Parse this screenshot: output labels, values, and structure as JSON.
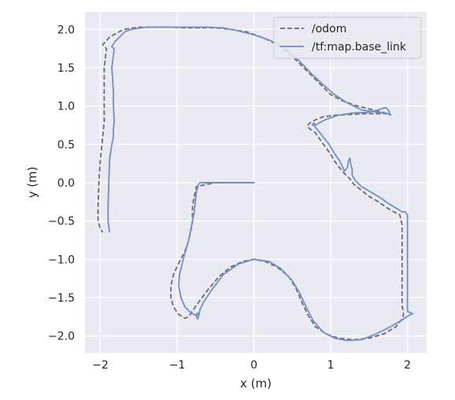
{
  "chart_data": {
    "type": "line",
    "title": "",
    "xlabel": "x (m)",
    "ylabel": "y (m)",
    "xlim": [
      -2.2,
      2.25
    ],
    "ylim": [
      -2.22,
      2.23
    ],
    "xticks": [
      -2,
      -1,
      0,
      1,
      2
    ],
    "yticks": [
      -2.0,
      -1.5,
      -1.0,
      -0.5,
      0.0,
      0.5,
      1.0,
      1.5,
      2.0
    ],
    "xtick_labels": [
      "−2",
      "−1",
      "0",
      "1",
      "2"
    ],
    "ytick_labels": [
      "−2.0",
      "−1.5",
      "−1.0",
      "−0.5",
      "0.0",
      "0.5",
      "1.0",
      "1.5",
      "2.0"
    ],
    "grid": true,
    "legend_position": "top-right",
    "colors": {
      "background": "#eaeaf2",
      "grid": "#ffffff",
      "odom": "#6b6b6b",
      "tf": "#6f8fc6"
    },
    "series": [
      {
        "name": "/odom",
        "style": "dashed",
        "x": [
          -0.65,
          -0.5,
          -0.3,
          -0.1,
          0.0,
          0.0,
          -0.1,
          -0.3,
          -0.5,
          -0.75,
          -0.8,
          -0.8,
          -0.82,
          -0.85,
          -0.9,
          -0.98,
          -1.05,
          -1.08,
          -1.08,
          -1.05,
          -0.98,
          -0.9,
          -0.85,
          -0.75,
          -0.6,
          -0.45,
          -0.3,
          -0.15,
          0.0,
          0.15,
          0.3,
          0.45,
          0.55,
          0.62,
          0.7,
          0.8,
          0.95,
          1.1,
          1.3,
          1.5,
          1.7,
          1.85,
          1.93,
          1.95,
          1.93,
          1.93,
          1.93,
          1.93,
          1.9,
          1.82,
          1.72,
          1.62,
          1.5,
          1.4,
          1.3,
          1.25,
          1.15,
          1.05,
          1.0,
          0.92,
          0.85,
          0.8,
          0.73,
          0.7,
          0.7,
          0.73,
          0.8,
          0.9,
          1.05,
          1.25,
          1.45,
          1.65,
          1.75,
          1.55,
          1.35,
          1.15,
          1.0,
          0.85,
          0.7,
          0.55,
          0.4,
          0.25,
          0.1,
          -0.1,
          -0.3,
          -0.5,
          -0.7,
          -0.9,
          -1.1,
          -1.3,
          -1.5,
          -1.7,
          -1.88,
          -1.97,
          -1.92,
          -1.95,
          -1.95,
          -1.95,
          -1.98,
          -2.0,
          -2.02,
          -2.03,
          -2.03,
          -2.0,
          -1.97
        ],
        "y": [
          0.0,
          0.0,
          0.0,
          0.0,
          0.0,
          0.0,
          0.0,
          0.0,
          0.0,
          -0.05,
          -0.3,
          -0.5,
          -0.62,
          -0.75,
          -0.9,
          -1.05,
          -1.2,
          -1.35,
          -1.5,
          -1.62,
          -1.72,
          -1.77,
          -1.75,
          -1.6,
          -1.4,
          -1.22,
          -1.1,
          -1.03,
          -1.0,
          -1.03,
          -1.1,
          -1.22,
          -1.38,
          -1.55,
          -1.72,
          -1.88,
          -1.98,
          -2.03,
          -2.05,
          -2.03,
          -1.97,
          -1.88,
          -1.78,
          -1.72,
          -1.6,
          -1.3,
          -0.9,
          -0.55,
          -0.42,
          -0.38,
          -0.32,
          -0.25,
          -0.18,
          -0.1,
          -0.02,
          0.05,
          0.15,
          0.28,
          0.37,
          0.48,
          0.58,
          0.65,
          0.7,
          0.73,
          0.75,
          0.78,
          0.82,
          0.86,
          0.88,
          0.89,
          0.9,
          0.9,
          0.9,
          0.95,
          1.0,
          1.07,
          1.15,
          1.3,
          1.45,
          1.6,
          1.73,
          1.83,
          1.9,
          1.97,
          2.0,
          2.02,
          2.02,
          2.02,
          2.03,
          2.03,
          2.03,
          2.0,
          1.9,
          1.8,
          1.75,
          1.5,
          1.2,
          0.8,
          0.5,
          0.3,
          0.0,
          -0.3,
          -0.5,
          -0.6,
          -0.65
        ]
      },
      {
        "name": "/tf:map.base_link",
        "style": "solid",
        "x": [
          0.0,
          -0.2,
          -0.4,
          -0.6,
          -0.65,
          -0.7,
          -0.72,
          -0.75,
          -0.78,
          -0.85,
          -0.92,
          -0.97,
          -0.98,
          -0.95,
          -0.9,
          -0.82,
          -0.76,
          -0.73,
          -0.75,
          -0.73,
          -0.7,
          -0.65,
          -0.55,
          -0.4,
          -0.2,
          0.0,
          0.2,
          0.35,
          0.5,
          0.6,
          0.68,
          0.77,
          0.9,
          1.05,
          1.2,
          1.4,
          1.6,
          1.78,
          1.92,
          2.02,
          2.07,
          2.0,
          2.0,
          2.0,
          2.0,
          1.97,
          1.93,
          1.85,
          1.75,
          1.65,
          1.52,
          1.4,
          1.32,
          1.28,
          1.28,
          1.26,
          1.25,
          1.23,
          1.22,
          1.18,
          1.12,
          1.05,
          0.98,
          0.9,
          0.82,
          0.78,
          0.76,
          0.78,
          0.8,
          0.85,
          0.95,
          1.1,
          1.3,
          1.5,
          1.62,
          1.68,
          1.72,
          1.75,
          1.78,
          1.75,
          1.6,
          1.4,
          1.2,
          1.05,
          0.9,
          0.75,
          0.6,
          0.45,
          0.3,
          0.15,
          0.0,
          -0.2,
          -0.4,
          -0.6,
          -0.8,
          -1.0,
          -1.2,
          -1.4,
          -1.6,
          -1.68,
          -1.8,
          -1.85,
          -1.85,
          -1.82,
          -1.85,
          -1.83,
          -1.83,
          -1.82,
          -1.83,
          -1.83,
          -1.85,
          -1.88,
          -1.89,
          -1.9,
          -1.9,
          -1.88
        ],
        "y": [
          0.0,
          0.0,
          0.0,
          0.0,
          0.0,
          0.0,
          -0.02,
          -0.12,
          -0.4,
          -0.75,
          -1.0,
          -1.2,
          -1.35,
          -1.5,
          -1.62,
          -1.7,
          -1.73,
          -1.7,
          -1.75,
          -1.78,
          -1.65,
          -1.55,
          -1.4,
          -1.2,
          -1.06,
          -1.0,
          -1.03,
          -1.12,
          -1.28,
          -1.45,
          -1.62,
          -1.8,
          -1.95,
          -2.03,
          -2.06,
          -2.05,
          -1.97,
          -1.88,
          -1.8,
          -1.73,
          -1.71,
          -1.68,
          -1.3,
          -0.8,
          -0.42,
          -0.38,
          -0.38,
          -0.33,
          -0.27,
          -0.2,
          -0.12,
          -0.05,
          0.03,
          0.1,
          0.17,
          0.25,
          0.32,
          0.28,
          0.2,
          0.15,
          0.28,
          0.38,
          0.5,
          0.6,
          0.7,
          0.75,
          0.75,
          0.78,
          0.75,
          0.78,
          0.83,
          0.88,
          0.91,
          0.92,
          0.95,
          0.97,
          0.98,
          0.95,
          0.88,
          0.9,
          0.92,
          0.95,
          1.05,
          1.15,
          1.28,
          1.42,
          1.58,
          1.72,
          1.82,
          1.88,
          1.93,
          1.98,
          2.02,
          2.03,
          2.03,
          2.03,
          2.03,
          2.03,
          2.0,
          1.97,
          1.85,
          1.78,
          1.77,
          1.75,
          1.5,
          1.2,
          1.0,
          0.8,
          0.7,
          0.6,
          0.5,
          0.3,
          0.0,
          -0.3,
          -0.5,
          -0.65
        ]
      }
    ]
  }
}
